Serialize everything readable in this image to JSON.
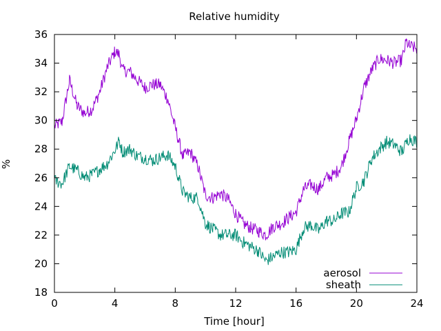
{
  "chart_data": {
    "type": "line",
    "title": "Relative humidity",
    "xlabel": "Time [hour]",
    "ylabel": "%",
    "xlim": [
      0,
      24
    ],
    "ylim": [
      18,
      36
    ],
    "xticks": [
      0,
      4,
      8,
      12,
      16,
      20,
      24
    ],
    "yticks": [
      18,
      20,
      22,
      24,
      26,
      28,
      30,
      32,
      34,
      36
    ],
    "grid": false,
    "legend_position": "bottom-right",
    "series": [
      {
        "name": "aerosol",
        "color": "#9400d3",
        "x": [
          0,
          0.5,
          1,
          1.5,
          2,
          2.5,
          3,
          3.5,
          4,
          4.3,
          4.5,
          5,
          5.5,
          6,
          6.5,
          7,
          7.5,
          8,
          8.5,
          9,
          9.5,
          10,
          10.5,
          11,
          11.5,
          12,
          12.5,
          13,
          13.5,
          14,
          14.5,
          15,
          15.5,
          16,
          16.5,
          17,
          17.5,
          18,
          18.5,
          19,
          19.5,
          20,
          20.5,
          21,
          21.5,
          22,
          22.5,
          23,
          23.3,
          23.5,
          24
        ],
        "y": [
          29.6,
          29.9,
          32.8,
          31.0,
          30.5,
          30.8,
          32.0,
          33.7,
          34.8,
          34.6,
          33.5,
          33.4,
          32.8,
          32.3,
          32.5,
          32.5,
          31.5,
          29.5,
          27.5,
          27.8,
          26.8,
          24.8,
          24.6,
          24.9,
          24.5,
          23.5,
          22.8,
          22.5,
          22.3,
          22.0,
          22.6,
          22.8,
          23.2,
          23.6,
          25.2,
          25.5,
          25.2,
          26.0,
          26.2,
          26.8,
          28.5,
          30.1,
          32.3,
          33.5,
          34.3,
          34.2,
          34.0,
          34.2,
          35.5,
          35.2,
          35.0
        ]
      },
      {
        "name": "sheath",
        "color": "#008b74",
        "x": [
          0,
          0.5,
          1,
          1.5,
          2,
          2.5,
          3,
          3.5,
          4,
          4.3,
          4.5,
          5,
          5.5,
          6,
          6.5,
          7,
          7.5,
          8,
          8.5,
          9,
          9.5,
          10,
          10.5,
          11,
          11.5,
          12,
          12.5,
          13,
          13.5,
          14,
          14.5,
          15,
          15.5,
          16,
          16.5,
          17,
          17.5,
          18,
          18.5,
          19,
          19.5,
          20,
          20.5,
          21,
          21.5,
          22,
          22.5,
          23,
          23.5,
          24
        ],
        "y": [
          25.8,
          25.6,
          26.8,
          26.5,
          26.0,
          26.2,
          26.6,
          27.0,
          27.9,
          28.6,
          27.8,
          28.0,
          27.5,
          27.4,
          27.2,
          27.4,
          27.6,
          26.8,
          25.0,
          24.6,
          24.6,
          22.8,
          22.4,
          22.0,
          22.0,
          22.0,
          21.5,
          21.2,
          20.9,
          20.2,
          20.5,
          20.8,
          20.8,
          21.0,
          22.5,
          22.7,
          22.3,
          23.0,
          23.0,
          23.5,
          23.6,
          25.3,
          25.8,
          27.3,
          28.0,
          28.5,
          28.3,
          27.8,
          28.8,
          28.5
        ]
      }
    ]
  }
}
